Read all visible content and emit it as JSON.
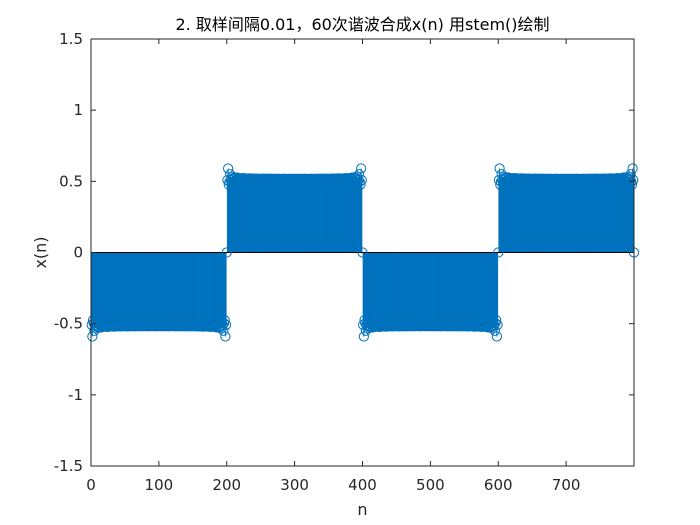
{
  "chart_data": {
    "type": "stem",
    "title": "2. 取样间隔0.01，60次谐波合成x(n) 用stem()绘制",
    "xlabel": "n",
    "ylabel": "x(n)",
    "xlim": [
      0,
      800
    ],
    "ylim": [
      -1.5,
      1.5
    ],
    "x_ticks": [
      0,
      100,
      200,
      300,
      400,
      500,
      600,
      700
    ],
    "y_ticks": [
      -1.5,
      -1,
      -0.5,
      0,
      0.5,
      1,
      1.5
    ],
    "y_tick_labels": [
      "-1.5",
      "-1",
      "-0.5",
      "0",
      "0.5",
      "1",
      "1.5"
    ],
    "grid": false,
    "colors": {
      "series": "#0072bd",
      "axes": "#262626",
      "baseline": "#000000"
    },
    "series": [
      {
        "n_start": 1,
        "n_end": 800,
        "n_step": 1,
        "signal": "square wave built from 60 odd harmonics (Fourier synthesis)",
        "plateau_level": 0.53,
        "overshoot_peak": 0.59,
        "period": 400,
        "segments": [
          {
            "n_from": 1,
            "n_to": 199,
            "sign": -1
          },
          {
            "n_from": 200,
            "n_to": 399,
            "sign": 1
          },
          {
            "n_from": 400,
            "n_to": 599,
            "sign": -1
          },
          {
            "n_from": 600,
            "n_to": 800,
            "sign": 1
          }
        ],
        "zero_crossings": [
          0,
          200,
          400,
          600,
          800
        ]
      }
    ]
  }
}
